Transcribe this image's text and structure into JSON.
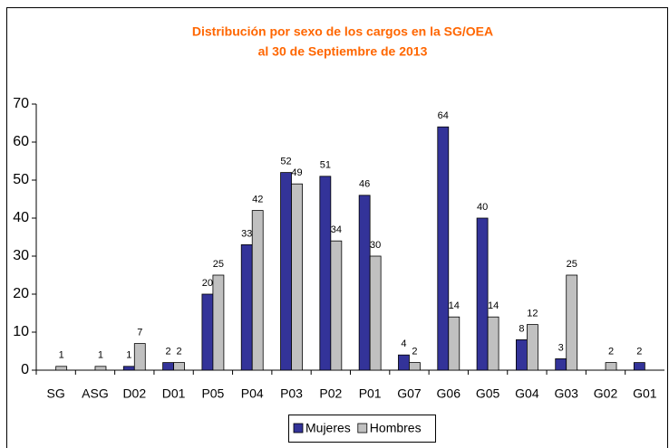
{
  "chart_data": {
    "type": "bar",
    "title": [
      "Distribución por sexo de los cargos en la SG/OEA",
      "al 30 de Septiembre de 2013"
    ],
    "categories": [
      "SG",
      "ASG",
      "D02",
      "D01",
      "P05",
      "P04",
      "P03",
      "P02",
      "P01",
      "G07",
      "G06",
      "G05",
      "G04",
      "G03",
      "G02",
      "G01"
    ],
    "series": [
      {
        "name": "Mujeres",
        "color": "#333399",
        "values": [
          null,
          null,
          1,
          2,
          20,
          33,
          52,
          51,
          46,
          4,
          64,
          40,
          8,
          3,
          null,
          2
        ]
      },
      {
        "name": "Hombres",
        "color": "#c0c0c0",
        "values": [
          1,
          1,
          7,
          2,
          25,
          42,
          49,
          34,
          30,
          2,
          14,
          14,
          12,
          25,
          2,
          null
        ]
      }
    ],
    "ylim": [
      0,
      70
    ],
    "yticks": [
      0,
      10,
      20,
      30,
      40,
      50,
      60,
      70
    ],
    "legend": "bottom"
  }
}
